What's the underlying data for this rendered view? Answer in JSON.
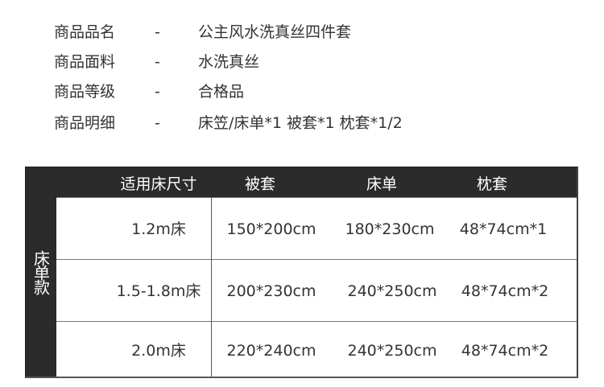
{
  "info": [
    {
      "label": "商品品名",
      "dash": "-",
      "value": "公主风水洗真丝四件套"
    },
    {
      "label": "商品面料",
      "dash": "-",
      "value": "水洗真丝"
    },
    {
      "label": "商品等级",
      "dash": "-",
      "value": "合格品"
    },
    {
      "label": "商品明细",
      "dash": "-",
      "value": "床笠/床单*1 被套*1 枕套*1/2"
    }
  ],
  "table": {
    "side_label": "床单款",
    "headers": [
      "适用床尺寸",
      "被套",
      "床单",
      "枕套"
    ],
    "rows": [
      [
        "1.2m床",
        "150*200cm",
        "180*230cm",
        "48*74cm*1"
      ],
      [
        "1.5-1.8m床",
        "200*230cm",
        "240*250cm",
        "48*74cm*2"
      ],
      [
        "2.0m床",
        "220*240cm",
        "240*250cm",
        "48*74cm*2"
      ]
    ]
  }
}
